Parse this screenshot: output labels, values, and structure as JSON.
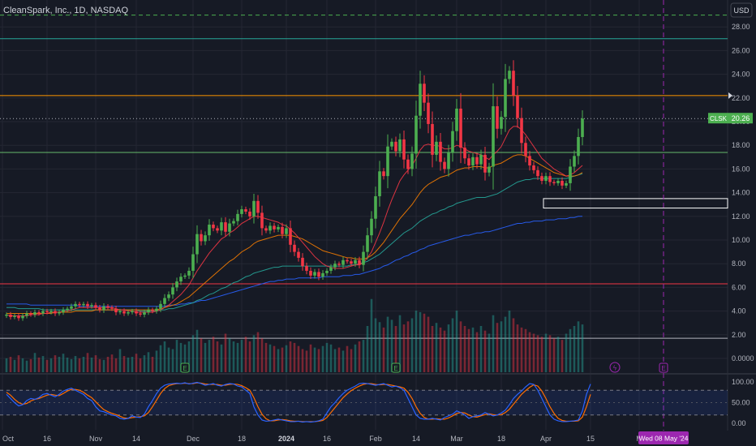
{
  "header": {
    "symbol_title": "CleanSpark, Inc., 1D, NASDAQ",
    "currency_button": "USD"
  },
  "colors": {
    "background": "#161a25",
    "grid": "#242733",
    "text": "#b2b5be",
    "up": "#26a69a",
    "candle_up": "#4caf50",
    "candle_down": "#f23645",
    "ma_red": "#f23645",
    "ma_orange": "#f57c00",
    "ma_teal": "#26a69a",
    "ma_blue": "#2962ff",
    "stoch_k": "#2962ff",
    "stoch_d": "#ff6d00",
    "accent_purple": "#9c27b0",
    "price_badge": "#4caf50"
  },
  "chart_data": [
    {
      "type": "candlestick",
      "title": "CleanSpark, Inc., 1D, NASDAQ",
      "ylim": [
        0,
        30
      ],
      "y_ticks": [
        "0.0000",
        "2.00",
        "4.00",
        "6.00",
        "8.00",
        "10.00",
        "12.00",
        "14.00",
        "16.00",
        "18.00",
        "20.00",
        "22.00",
        "24.00",
        "26.00",
        "28.00"
      ],
      "y_tick_values": [
        0,
        2,
        4,
        6,
        8,
        10,
        12,
        14,
        16,
        18,
        20,
        22,
        24,
        26,
        28
      ],
      "x_ticks": [
        {
          "label": "Oct",
          "index": -1
        },
        {
          "label": "16",
          "index": 10
        },
        {
          "label": "Nov",
          "index": 22
        },
        {
          "label": "14",
          "index": 32
        },
        {
          "label": "Dec",
          "index": 46
        },
        {
          "label": "18",
          "index": 58
        },
        {
          "label": "2024",
          "index": 69
        },
        {
          "label": "16",
          "index": 79
        },
        {
          "label": "Feb",
          "index": 91
        },
        {
          "label": "14",
          "index": 101
        },
        {
          "label": "Mar",
          "index": 111
        },
        {
          "label": "18",
          "index": 122
        },
        {
          "label": "Apr",
          "index": 133
        },
        {
          "label": "15",
          "index": 144
        },
        {
          "label": "M",
          "index": 156
        }
      ],
      "current_price": {
        "symbol": "CLSK",
        "value": "20.26",
        "price": 20.26
      },
      "date_marker": {
        "label": "Wed 08 May '24",
        "index": 162
      },
      "horizontal_levels": [
        {
          "price": 29.0,
          "color": "#4caf50",
          "style": "dashed"
        },
        {
          "price": 27.0,
          "color": "#26a69a",
          "style": "solid"
        },
        {
          "price": 22.2,
          "color": "#ff9800",
          "style": "solid"
        },
        {
          "price": 20.26,
          "color": "#b2b5be",
          "style": "dotted"
        },
        {
          "price": 17.4,
          "color": "#66bb6a",
          "style": "solid"
        },
        {
          "price": 6.3,
          "color": "#f23645",
          "style": "solid"
        },
        {
          "price": 1.7,
          "color": "#b2b5be",
          "style": "solid"
        }
      ],
      "zone_box": {
        "top": 13.5,
        "bottom": 12.7,
        "start_index": 132
      },
      "earnings_markers": [
        44,
        96
      ],
      "dividend_markers": [
        150
      ],
      "future_earnings_marker": 162,
      "candles_close": [
        3.7,
        3.5,
        3.6,
        3.4,
        3.6,
        3.8,
        3.7,
        3.9,
        3.8,
        4.0,
        3.9,
        4.0,
        3.8,
        3.9,
        4.1,
        4.2,
        4.4,
        4.6,
        4.5,
        4.6,
        4.4,
        4.5,
        4.3,
        4.1,
        4.4,
        4.3,
        4.2,
        3.9,
        4.0,
        3.8,
        3.9,
        4.0,
        3.8,
        3.7,
        3.9,
        4.1,
        4.0,
        4.2,
        4.6,
        5.1,
        5.4,
        6.0,
        6.5,
        6.9,
        7.0,
        7.4,
        8.8,
        10.5,
        9.9,
        10.4,
        11.3,
        11.0,
        10.8,
        11.5,
        10.7,
        11.4,
        11.6,
        12.2,
        12.6,
        12.4,
        12.0,
        13.3,
        12.3,
        11.0,
        10.8,
        11.2,
        10.9,
        11.1,
        10.5,
        11.0,
        9.6,
        9.0,
        8.5,
        7.8,
        7.4,
        7.0,
        7.3,
        6.9,
        7.2,
        7.4,
        7.7,
        8.0,
        7.9,
        8.3,
        8.2,
        8.0,
        8.3,
        7.9,
        9.0,
        10.4,
        11.8,
        13.7,
        15.8,
        15.4,
        17.9,
        18.3,
        17.5,
        18.5,
        16.8,
        16.0,
        17.3,
        20.5,
        23.2,
        21.6,
        19.8,
        17.2,
        18.3,
        16.6,
        16.0,
        17.4,
        19.2,
        21.1,
        17.8,
        16.9,
        16.3,
        17.0,
        16.4,
        17.2,
        15.7,
        16.2,
        21.3,
        19.4,
        20.4,
        23.6,
        24.3,
        22.2,
        20.3,
        18.2,
        17.1,
        16.3,
        15.9,
        15.4,
        15.0,
        15.4,
        14.9,
        14.8,
        15.0,
        14.6,
        14.8,
        16.2,
        17.1,
        18.7,
        20.26
      ],
      "volume_scale_max": 100,
      "volume": [
        18,
        20,
        16,
        22,
        18,
        15,
        17,
        25,
        19,
        21,
        16,
        18,
        22,
        20,
        24,
        19,
        17,
        21,
        18,
        20,
        25,
        19,
        22,
        17,
        16,
        20,
        23,
        18,
        30,
        21,
        19,
        20,
        24,
        18,
        22,
        26,
        20,
        28,
        35,
        40,
        32,
        30,
        42,
        38,
        36,
        40,
        48,
        55,
        44,
        38,
        42,
        46,
        40,
        36,
        50,
        44,
        40,
        38,
        42,
        46,
        40,
        48,
        52,
        44,
        38,
        36,
        34,
        30,
        32,
        35,
        40,
        38,
        34,
        30,
        28,
        36,
        32,
        30,
        34,
        38,
        36,
        30,
        32,
        28,
        34,
        30,
        36,
        40,
        42,
        60,
        95,
        70,
        65,
        58,
        72,
        68,
        60,
        74,
        62,
        66,
        70,
        80,
        78,
        76,
        72,
        60,
        64,
        58,
        54,
        62,
        70,
        80,
        66,
        60,
        56,
        58,
        52,
        60,
        54,
        50,
        74,
        64,
        66,
        72,
        80,
        70,
        62,
        58,
        56,
        52,
        50,
        48,
        46,
        50,
        48,
        44,
        46,
        42,
        50,
        56,
        60,
        66,
        62
      ],
      "ma_red": [
        3.7,
        3.6,
        3.6,
        3.6,
        3.6,
        3.6,
        3.7,
        3.7,
        3.7,
        3.8,
        3.8,
        3.9,
        3.9,
        3.9,
        4.0,
        4.0,
        4.1,
        4.2,
        4.3,
        4.3,
        4.3,
        4.3,
        4.3,
        4.3,
        4.3,
        4.3,
        4.3,
        4.2,
        4.1,
        4.1,
        4.0,
        4.0,
        3.9,
        3.9,
        3.9,
        3.9,
        3.9,
        4.0,
        4.1,
        4.3,
        4.5,
        4.8,
        5.1,
        5.4,
        5.8,
        6.2,
        6.8,
        7.4,
        7.9,
        8.4,
        8.9,
        9.3,
        9.7,
        10.1,
        10.3,
        10.6,
        10.8,
        11.1,
        11.4,
        11.6,
        11.8,
        12.0,
        12.0,
        11.9,
        11.8,
        11.7,
        11.6,
        11.5,
        11.3,
        11.2,
        10.9,
        10.6,
        10.2,
        9.8,
        9.4,
        9.0,
        8.6,
        8.3,
        8.0,
        7.8,
        7.7,
        7.6,
        7.6,
        7.6,
        7.7,
        7.8,
        7.9,
        7.9,
        8.1,
        8.5,
        9.0,
        9.8,
        10.6,
        11.5,
        12.5,
        13.4,
        14.2,
        15.0,
        15.5,
        15.9,
        16.3,
        16.9,
        17.6,
        18.0,
        18.1,
        18.0,
        18.0,
        17.9,
        17.7,
        17.7,
        17.8,
        18.0,
        17.9,
        17.7,
        17.5,
        17.4,
        17.3,
        17.2,
        17.0,
        16.8,
        17.2,
        17.5,
        17.9,
        18.6,
        19.3,
        19.6,
        19.6,
        19.3,
        18.9,
        18.4,
        17.9,
        17.4,
        16.9,
        16.6,
        16.3,
        16.0,
        15.8,
        15.6,
        15.4,
        15.5,
        15.7,
        16.0,
        16.3
      ],
      "ma_orange": [
        3.8,
        3.8,
        3.8,
        3.8,
        3.8,
        3.8,
        3.8,
        3.8,
        3.8,
        3.8,
        3.8,
        3.8,
        3.9,
        3.9,
        3.9,
        3.9,
        3.9,
        4.0,
        4.0,
        4.0,
        4.0,
        4.0,
        4.1,
        4.1,
        4.1,
        4.1,
        4.1,
        4.1,
        4.1,
        4.1,
        4.1,
        4.1,
        4.1,
        4.1,
        4.1,
        4.1,
        4.1,
        4.1,
        4.2,
        4.3,
        4.4,
        4.5,
        4.6,
        4.8,
        5.0,
        5.2,
        5.5,
        5.8,
        6.1,
        6.4,
        6.7,
        7.0,
        7.3,
        7.6,
        7.9,
        8.2,
        8.4,
        8.7,
        9.0,
        9.2,
        9.4,
        9.7,
        9.9,
        10.0,
        10.1,
        10.2,
        10.3,
        10.4,
        10.4,
        10.4,
        10.4,
        10.3,
        10.2,
        10.1,
        9.9,
        9.7,
        9.5,
        9.3,
        9.1,
        9.0,
        8.9,
        8.8,
        8.7,
        8.6,
        8.5,
        8.5,
        8.4,
        8.4,
        8.4,
        8.5,
        8.7,
        9.0,
        9.4,
        9.8,
        10.3,
        10.8,
        11.3,
        11.8,
        12.2,
        12.6,
        13.0,
        13.5,
        14.0,
        14.4,
        14.7,
        14.9,
        15.1,
        15.3,
        15.4,
        15.5,
        15.7,
        15.9,
        16.0,
        16.1,
        16.1,
        16.2,
        16.2,
        16.2,
        16.1,
        16.1,
        16.3,
        16.4,
        16.5,
        16.7,
        16.9,
        17.1,
        17.2,
        17.2,
        17.1,
        16.9,
        16.7,
        16.5,
        16.3,
        16.1,
        15.9,
        15.7,
        15.6,
        15.5,
        15.4,
        15.4,
        15.4,
        15.5,
        15.7
      ],
      "ma_teal": [
        4.3,
        4.3,
        4.3,
        4.2,
        4.2,
        4.2,
        4.2,
        4.2,
        4.2,
        4.1,
        4.1,
        4.1,
        4.1,
        4.1,
        4.1,
        4.1,
        4.1,
        4.1,
        4.1,
        4.1,
        4.1,
        4.1,
        4.1,
        4.1,
        4.1,
        4.1,
        4.1,
        4.1,
        4.1,
        4.1,
        4.1,
        4.1,
        4.1,
        4.0,
        4.0,
        4.0,
        4.0,
        4.0,
        4.1,
        4.1,
        4.2,
        4.2,
        4.3,
        4.4,
        4.5,
        4.6,
        4.7,
        4.9,
        5.0,
        5.2,
        5.4,
        5.5,
        5.7,
        5.9,
        6.0,
        6.2,
        6.4,
        6.5,
        6.7,
        6.9,
        7.0,
        7.2,
        7.3,
        7.4,
        7.5,
        7.6,
        7.7,
        7.7,
        7.8,
        7.8,
        7.8,
        7.8,
        7.8,
        7.8,
        7.8,
        7.8,
        7.8,
        7.8,
        7.8,
        7.8,
        7.8,
        7.8,
        7.8,
        7.8,
        7.8,
        7.9,
        7.9,
        8.0,
        8.1,
        8.2,
        8.4,
        8.6,
        8.8,
        9.1,
        9.4,
        9.7,
        10.0,
        10.3,
        10.6,
        10.8,
        11.0,
        11.3,
        11.6,
        11.8,
        12.0,
        12.2,
        12.3,
        12.5,
        12.6,
        12.8,
        12.9,
        13.1,
        13.2,
        13.3,
        13.4,
        13.5,
        13.6,
        13.6,
        13.6,
        13.7,
        13.8,
        13.9,
        14.1,
        14.3,
        14.5,
        14.7,
        14.9,
        15.0,
        15.1,
        15.1,
        15.2,
        15.2,
        15.2,
        15.2,
        15.2,
        15.2,
        15.2,
        15.2,
        15.2,
        15.3,
        15.4,
        15.5,
        15.6
      ],
      "ma_blue": [
        4.6,
        4.6,
        4.6,
        4.6,
        4.6,
        4.6,
        4.5,
        4.5,
        4.5,
        4.5,
        4.5,
        4.5,
        4.5,
        4.5,
        4.5,
        4.5,
        4.5,
        4.5,
        4.4,
        4.4,
        4.4,
        4.4,
        4.4,
        4.4,
        4.4,
        4.4,
        4.4,
        4.4,
        4.4,
        4.4,
        4.4,
        4.4,
        4.4,
        4.4,
        4.4,
        4.4,
        4.4,
        4.4,
        4.4,
        4.4,
        4.5,
        4.5,
        4.5,
        4.6,
        4.6,
        4.7,
        4.7,
        4.8,
        4.9,
        4.9,
        5.0,
        5.1,
        5.2,
        5.3,
        5.4,
        5.5,
        5.6,
        5.7,
        5.8,
        5.9,
        6.0,
        6.1,
        6.2,
        6.3,
        6.4,
        6.5,
        6.5,
        6.6,
        6.6,
        6.7,
        6.7,
        6.7,
        6.8,
        6.8,
        6.8,
        6.8,
        6.8,
        6.8,
        6.9,
        6.9,
        6.9,
        6.9,
        6.9,
        7.0,
        7.0,
        7.0,
        7.1,
        7.1,
        7.2,
        7.3,
        7.4,
        7.5,
        7.6,
        7.8,
        7.9,
        8.1,
        8.3,
        8.4,
        8.6,
        8.7,
        8.9,
        9.0,
        9.2,
        9.3,
        9.5,
        9.6,
        9.7,
        9.8,
        9.9,
        10.0,
        10.1,
        10.2,
        10.3,
        10.4,
        10.4,
        10.5,
        10.6,
        10.6,
        10.7,
        10.7,
        10.8,
        10.9,
        11.0,
        11.1,
        11.2,
        11.3,
        11.4,
        11.4,
        11.5,
        11.5,
        11.6,
        11.6,
        11.6,
        11.7,
        11.7,
        11.7,
        11.8,
        11.8,
        11.8,
        11.9,
        11.9,
        12.0,
        12.0
      ]
    },
    {
      "type": "line",
      "ylim": [
        -8,
        110
      ],
      "y_ticks": [
        "100.00",
        "50.00",
        "0.00"
      ],
      "y_tick_values": [
        100,
        50,
        0
      ],
      "bands": [
        80,
        20
      ],
      "stoch_k": [
        70,
        60,
        50,
        42,
        45,
        55,
        60,
        58,
        62,
        70,
        72,
        68,
        64,
        70,
        78,
        82,
        85,
        80,
        75,
        70,
        60,
        55,
        40,
        30,
        28,
        24,
        20,
        18,
        12,
        10,
        12,
        18,
        15,
        14,
        22,
        40,
        55,
        72,
        85,
        92,
        95,
        96,
        97,
        96,
        98,
        95,
        97,
        99,
        96,
        92,
        94,
        96,
        92,
        90,
        94,
        96,
        95,
        90,
        88,
        80,
        72,
        40,
        20,
        8,
        5,
        6,
        8,
        10,
        8,
        6,
        4,
        4,
        5,
        3,
        4,
        3,
        4,
        6,
        10,
        25,
        40,
        50,
        62,
        72,
        80,
        85,
        90,
        96,
        97,
        96,
        94,
        92,
        94,
        96,
        92,
        88,
        90,
        86,
        80,
        60,
        40,
        20,
        12,
        10,
        10,
        12,
        10,
        8,
        14,
        18,
        22,
        30,
        26,
        20,
        12,
        16,
        18,
        20,
        26,
        22,
        18,
        20,
        25,
        32,
        45,
        60,
        70,
        78,
        88,
        96,
        94,
        80,
        60,
        40,
        20,
        10,
        6,
        4,
        4,
        5,
        6,
        8,
        30,
        70,
        95
      ],
      "stoch_d": [
        75,
        68,
        58,
        50,
        46,
        48,
        54,
        58,
        60,
        64,
        68,
        70,
        68,
        67,
        72,
        78,
        82,
        82,
        80,
        75,
        68,
        62,
        52,
        42,
        33,
        28,
        24,
        21,
        17,
        13,
        12,
        14,
        15,
        16,
        18,
        26,
        40,
        56,
        72,
        84,
        91,
        94,
        96,
        96,
        97,
        96,
        96,
        98,
        97,
        95,
        94,
        94,
        94,
        92,
        92,
        94,
        95,
        94,
        91,
        86,
        80,
        62,
        40,
        22,
        11,
        6,
        6,
        8,
        9,
        8,
        6,
        5,
        5,
        4,
        4,
        4,
        4,
        5,
        7,
        14,
        26,
        38,
        50,
        62,
        71,
        79,
        85,
        90,
        94,
        96,
        96,
        94,
        93,
        94,
        94,
        92,
        90,
        88,
        85,
        75,
        60,
        40,
        24,
        14,
        10,
        10,
        11,
        10,
        10,
        13,
        18,
        24,
        26,
        25,
        20,
        16,
        15,
        18,
        21,
        23,
        21,
        20,
        21,
        26,
        34,
        46,
        58,
        70,
        79,
        87,
        93,
        90,
        78,
        60,
        40,
        24,
        12,
        7,
        5,
        5,
        5,
        6,
        15,
        40,
        70
      ]
    }
  ]
}
